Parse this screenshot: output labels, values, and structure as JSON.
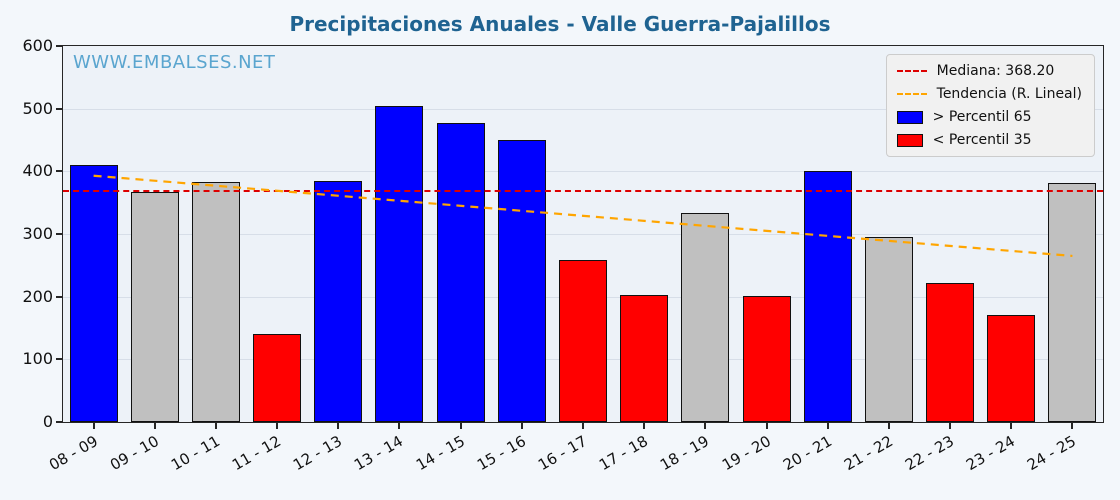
{
  "title": "Precipitaciones Anuales - Valle Guerra-Pajalillos",
  "watermark": "WWW.EMBALSES.NET",
  "colors": {
    "title": "#1f6391",
    "watermark": "#5aa5cf",
    "blue_bar": "#0000ff",
    "red_bar": "#ff0000",
    "gray_bar": "#c0c0c0",
    "bar_edge": "#111111",
    "median_line": "#dd0000",
    "trend_line": "#ffa500"
  },
  "chart_data": {
    "type": "bar",
    "title": "Precipitaciones Anuales - Valle Guerra-Pajalillos",
    "xlabel": "",
    "ylabel": "",
    "ylim": [
      0,
      600
    ],
    "yticks": [
      0,
      100,
      200,
      300,
      400,
      500,
      600
    ],
    "grid": true,
    "legend_position": "top-right",
    "categories": [
      "08 - 09",
      "09 - 10",
      "10 - 11",
      "11 - 12",
      "12 - 13",
      "13 - 14",
      "14 - 15",
      "15 - 16",
      "16 - 17",
      "17 - 18",
      "18 - 19",
      "19 - 20",
      "20 - 21",
      "21 - 22",
      "22 - 23",
      "23 - 24",
      "24 - 25"
    ],
    "values": [
      410,
      367,
      383,
      140,
      385,
      505,
      477,
      450,
      258,
      203,
      333,
      201,
      401,
      295,
      222,
      170,
      381
    ],
    "bar_classes": [
      "blue",
      "gray",
      "gray",
      "red",
      "blue",
      "blue",
      "blue",
      "blue",
      "red",
      "red",
      "gray",
      "red",
      "blue",
      "gray",
      "red",
      "red",
      "gray"
    ],
    "median": 368.2,
    "trend": {
      "start": 393,
      "end": 265
    },
    "legend": [
      {
        "label": "Mediana: 368.20",
        "type": "dashed",
        "color": "#dd0000"
      },
      {
        "label": "Tendencia (R. Lineal)",
        "type": "dashed",
        "color": "#ffa500"
      },
      {
        "label": "> Percentil 65",
        "type": "box",
        "color": "#0000ff"
      },
      {
        "label": "< Percentil 35",
        "type": "box",
        "color": "#ff0000"
      }
    ]
  }
}
